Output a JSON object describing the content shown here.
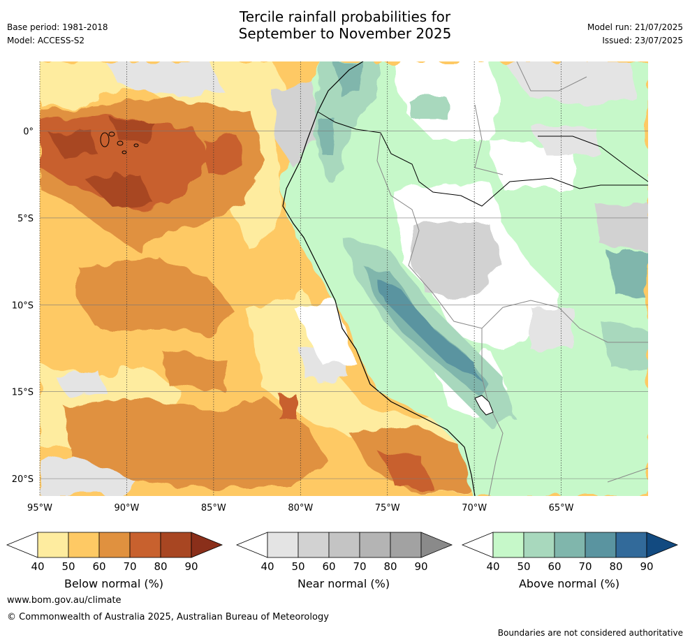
{
  "header": {
    "title_line1": "Tercile rainfall probabilities for",
    "title_line2": "September to November 2025",
    "base_period": "Base period: 1981-2018",
    "model": "Model: ACCESS-S2",
    "model_run": "Model run: 21/07/2025",
    "issued": "Issued: 23/07/2025"
  },
  "map": {
    "lon_labels": [
      "95°W",
      "90°W",
      "85°W",
      "80°W",
      "75°W",
      "70°W",
      "65°W"
    ],
    "lat_labels": [
      "0°",
      "5°S",
      "10°S",
      "15°S",
      "20°S"
    ],
    "lon_range": [
      -95,
      -60
    ],
    "lat_range": [
      -21,
      4
    ],
    "ocean_below_color": "#fec964",
    "land_above_color": "#c6f8c9"
  },
  "colorbars": {
    "ticks": [
      "40",
      "50",
      "60",
      "70",
      "80",
      "90"
    ],
    "below": {
      "label": "Below normal (%)",
      "colors": [
        "#ffffff",
        "#feec9f",
        "#fec964",
        "#e0913f",
        "#c8612e",
        "#a84622",
        "#8a2f1a"
      ]
    },
    "near": {
      "label": "Near normal (%)",
      "colors": [
        "#ffffff",
        "#e4e4e4",
        "#d2d2d2",
        "#c4c4c4",
        "#b4b4b4",
        "#a2a2a2",
        "#8a8a8a"
      ]
    },
    "above": {
      "label": "Above normal (%)",
      "colors": [
        "#ffffff",
        "#c6f8c9",
        "#a8d8bd",
        "#80b6ac",
        "#5a94a0",
        "#326a9a",
        "#124a80"
      ]
    }
  },
  "footer": {
    "website": "www.bom.gov.au/climate",
    "copyright": "© Commonwealth of Australia 2025, Australian Bureau of Meteorology",
    "disclaimer": "Boundaries are not considered authoritative"
  }
}
